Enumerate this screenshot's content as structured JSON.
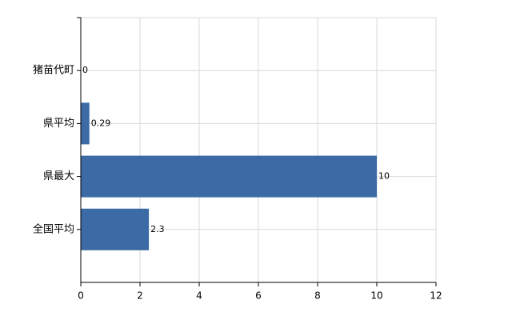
{
  "chart_data": {
    "type": "bar",
    "categories": [
      "猪苗代町",
      "県平均",
      "県最大",
      "全国平均"
    ],
    "values": [
      0,
      0.29,
      10,
      2.3
    ],
    "color": "#3b6aa5",
    "xlim": [
      0,
      12
    ],
    "xticks": [
      0,
      2,
      4,
      6,
      8,
      10,
      12
    ],
    "grid": true
  }
}
